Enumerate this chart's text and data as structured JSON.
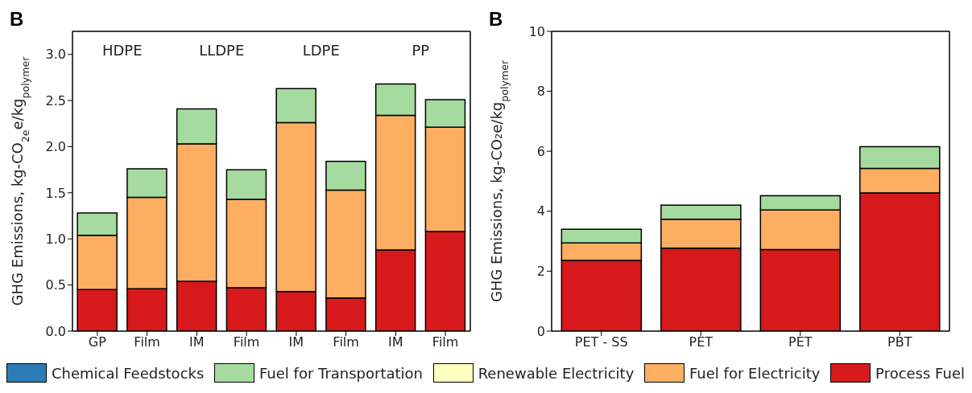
{
  "chart_data": [
    {
      "type": "bar",
      "title": "B",
      "ylabel": "GHG Emissions, kg-CO$_{2e}$e/kg$_{polymer}$",
      "categories": [
        "GP",
        "Film",
        "IM",
        "Film",
        "IM",
        "Film",
        "IM",
        "Film"
      ],
      "stacked": true,
      "ylim": [
        0,
        3.25
      ],
      "yticks": [
        {
          "value": 0,
          "label": "0.0"
        },
        {
          "value": 0.5,
          "label": "0.5"
        },
        {
          "value": 1,
          "label": "1.0"
        },
        {
          "value": 1.5,
          "label": "1.5"
        },
        {
          "value": 2,
          "label": "2.0"
        },
        {
          "value": 2.5,
          "label": "2.5"
        },
        {
          "value": 3,
          "label": "3.0"
        }
      ],
      "legend": "bottom",
      "annotations": [
        "HDPE",
        "LLDPE",
        "LDPE",
        "PP"
      ],
      "series": [
        {
          "name": "Process Fuel",
          "color": "#d7191c",
          "values": [
            0.45,
            0.46,
            0.54,
            0.47,
            0.43,
            0.36,
            0.88,
            1.08
          ]
        },
        {
          "name": "Fuel for Electricity",
          "color": "#fdae61",
          "values": [
            0.59,
            0.99,
            1.49,
            0.96,
            1.83,
            1.17,
            1.46,
            1.13
          ]
        },
        {
          "name": "Renewable Electricity",
          "color": "#ffffbf",
          "values": [
            0,
            0,
            0,
            0,
            0,
            0,
            0,
            0
          ]
        },
        {
          "name": "Fuel for Transportation",
          "color": "#a6dba0",
          "values": [
            0.24,
            0.31,
            0.38,
            0.32,
            0.37,
            0.31,
            0.34,
            0.3
          ]
        },
        {
          "name": "Chemical Feedstocks",
          "color": "#2c7bb6",
          "values": [
            0,
            0,
            0,
            0,
            0,
            0,
            0,
            0
          ]
        }
      ]
    },
    {
      "type": "bar",
      "title": "B",
      "ylabel": "GHG Emissions, kg-CO₂e/kg$_{polymer}$",
      "categories": [
        "PET - SS",
        "PET",
        "PET",
        "PBT"
      ],
      "stacked": true,
      "ylim": [
        0,
        10
      ],
      "yticks": [
        0,
        2,
        4,
        6,
        8,
        10
      ],
      "series": [
        {
          "color": "#d7191c",
          "values": [
            2.36,
            2.77,
            2.72,
            4.61
          ]
        },
        {
          "color": "#fdae61",
          "values": [
            0.58,
            0.96,
            1.32,
            0.82
          ]
        },
        {
          "color": "#ffffbf",
          "values": [
            0,
            0,
            0,
            0
          ]
        },
        {
          "color": "#a6dba0",
          "values": [
            0.46,
            0.47,
            0.48,
            0.72
          ]
        },
        {
          "color": "#2c7bb6",
          "values": [
            0,
            0,
            0,
            0
          ]
        }
      ]
    }
  ]
}
